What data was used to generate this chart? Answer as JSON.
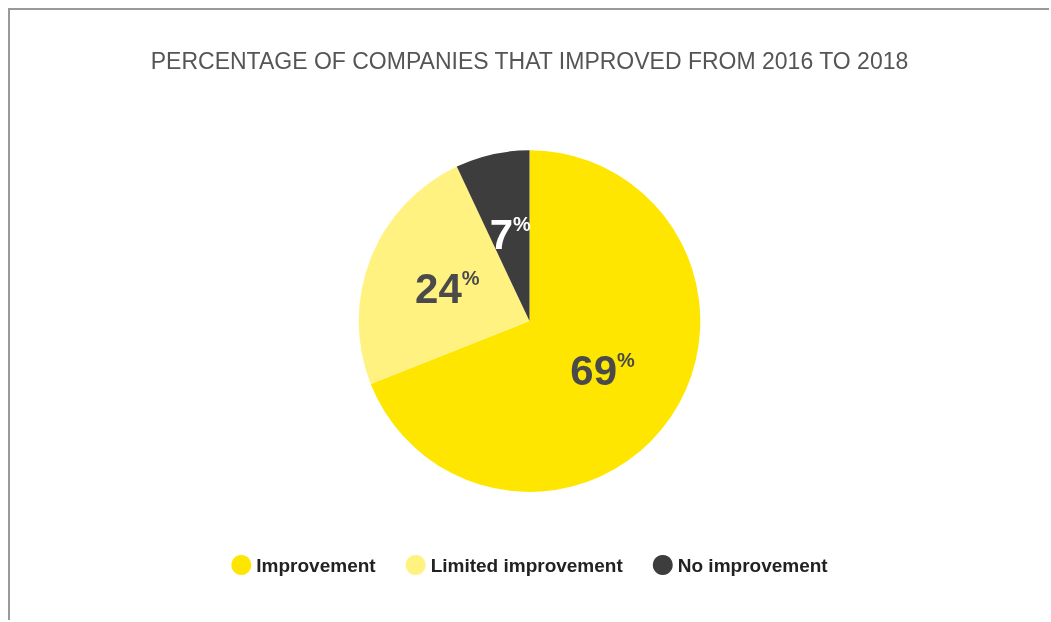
{
  "chart_data": {
    "type": "pie",
    "title": "PERCENTAGE OF COMPANIES THAT IMPROVED FROM 2016 TO 2018",
    "categories": [
      "Improvement",
      "Limited improvement",
      "No improvement"
    ],
    "values": [
      69,
      24,
      7
    ],
    "colors": [
      "#ffe600",
      "#fff280",
      "#3d3d3d"
    ],
    "value_labels": [
      "69%",
      "24%",
      "7%"
    ],
    "legend": "bottom"
  }
}
